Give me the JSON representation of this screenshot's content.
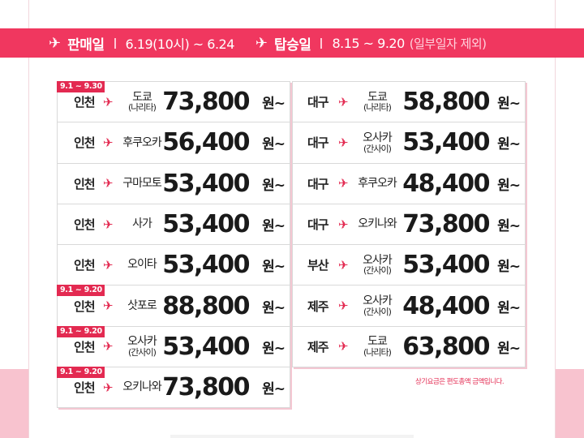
{
  "banner": {
    "sale_label": "판매일",
    "sale_period": "6.19(10시) ~ 6.24",
    "board_label": "탑승일",
    "board_period": "8.15 ~ 9.20",
    "board_note": "(일부일자 제외)"
  },
  "colors": {
    "accent": "#f0375f",
    "badge": "#e32a51",
    "bottom_band": "#f8c3cf"
  },
  "plane_icon": "airplane-icon",
  "won_label": "원~",
  "left_routes": [
    {
      "badge": "9.1 ~ 9.30",
      "origin": "인천",
      "dest": "도쿄",
      "dest_sub": "(나리타)",
      "price": "73,800"
    },
    {
      "badge": "",
      "origin": "인천",
      "dest": "후쿠오카",
      "dest_sub": "",
      "price": "56,400"
    },
    {
      "badge": "",
      "origin": "인천",
      "dest": "구마모토",
      "dest_sub": "",
      "price": "53,400"
    },
    {
      "badge": "",
      "origin": "인천",
      "dest": "사가",
      "dest_sub": "",
      "price": "53,400"
    },
    {
      "badge": "",
      "origin": "인천",
      "dest": "오이타",
      "dest_sub": "",
      "price": "53,400"
    },
    {
      "badge": "9.1 ~ 9.20",
      "origin": "인천",
      "dest": "삿포로",
      "dest_sub": "",
      "price": "88,800"
    },
    {
      "badge": "9.1 ~ 9.20",
      "origin": "인천",
      "dest": "오사카",
      "dest_sub": "(간사이)",
      "price": "53,400"
    },
    {
      "badge": "9.1 ~ 9.20",
      "origin": "인천",
      "dest": "오키나와",
      "dest_sub": "",
      "price": "73,800"
    }
  ],
  "right_routes": [
    {
      "origin": "대구",
      "dest": "도쿄",
      "dest_sub": "(나리타)",
      "price": "58,800"
    },
    {
      "origin": "대구",
      "dest": "오사카",
      "dest_sub": "(간사이)",
      "price": "53,400"
    },
    {
      "origin": "대구",
      "dest": "후쿠오카",
      "dest_sub": "",
      "price": "48,400"
    },
    {
      "origin": "대구",
      "dest": "오키나와",
      "dest_sub": "",
      "price": "73,800"
    },
    {
      "origin": "부산",
      "dest": "오사카",
      "dest_sub": "(간사이)",
      "price": "53,400"
    },
    {
      "origin": "제주",
      "dest": "오사카",
      "dest_sub": "(간사이)",
      "price": "48,400"
    },
    {
      "origin": "제주",
      "dest": "도쿄",
      "dest_sub": "(나리타)",
      "price": "63,800"
    }
  ],
  "footnote": "상기요금은 편도총액 금액입니다."
}
